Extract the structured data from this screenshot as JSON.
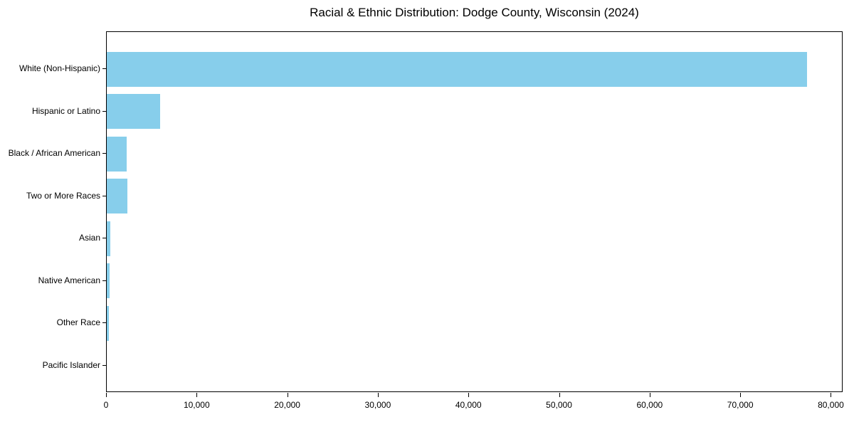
{
  "chart_data": {
    "type": "bar",
    "orientation": "horizontal",
    "title": "Racial & Ethnic Distribution: Dodge County, Wisconsin (2024)",
    "categories": [
      "White (Non-Hispanic)",
      "Hispanic or Latino",
      "Black / African American",
      "Two or More Races",
      "Asian",
      "Native American",
      "Other Race",
      "Pacific Islander"
    ],
    "values": [
      77300,
      5900,
      2200,
      2250,
      400,
      290,
      210,
      30
    ],
    "xlabel": "",
    "ylabel": "",
    "xlim": [
      0,
      81300
    ],
    "x_ticks": [
      0,
      10000,
      20000,
      30000,
      40000,
      50000,
      60000,
      70000,
      80000
    ],
    "x_tick_labels": [
      "0",
      "10,000",
      "20,000",
      "30,000",
      "40,000",
      "50,000",
      "60,000",
      "70,000",
      "80,000"
    ],
    "grid": false,
    "legend": null,
    "bar_color": "#87CEEB",
    "spine_color": "#000000",
    "text_color": "#000000",
    "background_color": "#ffffff"
  }
}
